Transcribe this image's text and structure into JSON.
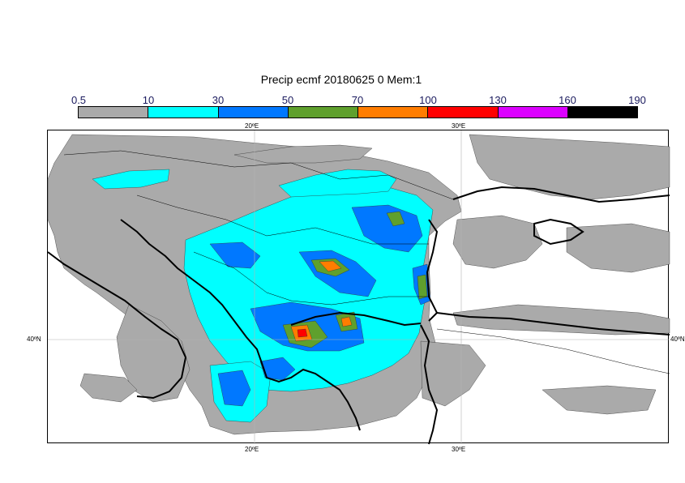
{
  "title": "Precip ecmf 20180625 0 Mem:1",
  "colorbar": {
    "labels": [
      "0.5",
      "10",
      "30",
      "50",
      "70",
      "100",
      "130",
      "160",
      "190"
    ],
    "colors": [
      "#aaaaaa",
      "#00ffff",
      "#0078ff",
      "#5fa02d",
      "#ff7d00",
      "#ff0000",
      "#dc00ff",
      "#000000"
    ]
  },
  "map": {
    "colors": {
      "light": "#aaaaaa",
      "cyan": "#00ffff",
      "blue": "#0078ff",
      "green": "#5fa02d",
      "orange": "#ff7d00",
      "red": "#ff0000",
      "coast": "#000000",
      "grid": "#b4b4b4"
    },
    "lon_labels": [
      "20ºE",
      "30ºE"
    ],
    "lat_labels": [
      "40ºN",
      "40ºN"
    ]
  }
}
